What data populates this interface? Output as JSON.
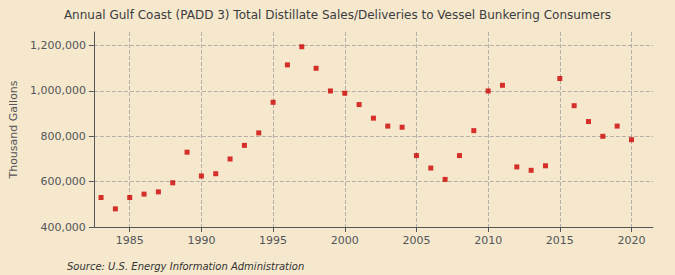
{
  "chart_data": {
    "type": "scatter",
    "title": "Annual Gulf Coast (PADD 3) Total Distillate Sales/Deliveries to Vessel Bunkering Consumers",
    "ylabel": "Thousand Gallons",
    "annotations": [
      "Source: U.S. Energy Information Administration"
    ],
    "x": [
      1983,
      1984,
      1985,
      1986,
      1987,
      1988,
      1989,
      1990,
      1991,
      1992,
      1993,
      1994,
      1995,
      1996,
      1997,
      1998,
      1999,
      2000,
      2001,
      2002,
      2003,
      2004,
      2005,
      2006,
      2007,
      2008,
      2009,
      2010,
      2011,
      2012,
      2013,
      2014,
      2015,
      2016,
      2017,
      2018,
      2019,
      2020
    ],
    "values": [
      530000,
      480000,
      530000,
      545000,
      555000,
      595000,
      730000,
      625000,
      635000,
      700000,
      760000,
      815000,
      950000,
      1115000,
      1195000,
      1100000,
      1000000,
      990000,
      940000,
      880000,
      845000,
      840000,
      715000,
      660000,
      610000,
      715000,
      825000,
      1000000,
      1025000,
      665000,
      650000,
      670000,
      1055000,
      935000,
      865000,
      800000,
      845000,
      785000
    ],
    "color": "#cc0000",
    "marker": "square",
    "xlim": [
      1982.5,
      2021.5
    ],
    "xticks": [
      1985,
      1990,
      1995,
      2000,
      2005,
      2010,
      2015,
      2020
    ],
    "ylim": [
      400000,
      1260000
    ],
    "yticks": [
      {
        "value": 400000,
        "label": "400,000"
      },
      {
        "value": 600000,
        "label": "600,000"
      },
      {
        "value": 800000,
        "label": "800,000"
      },
      {
        "value": 1000000,
        "label": "1,000,000"
      },
      {
        "value": 1200000,
        "label": "1,200,000"
      }
    ],
    "grid": true
  }
}
